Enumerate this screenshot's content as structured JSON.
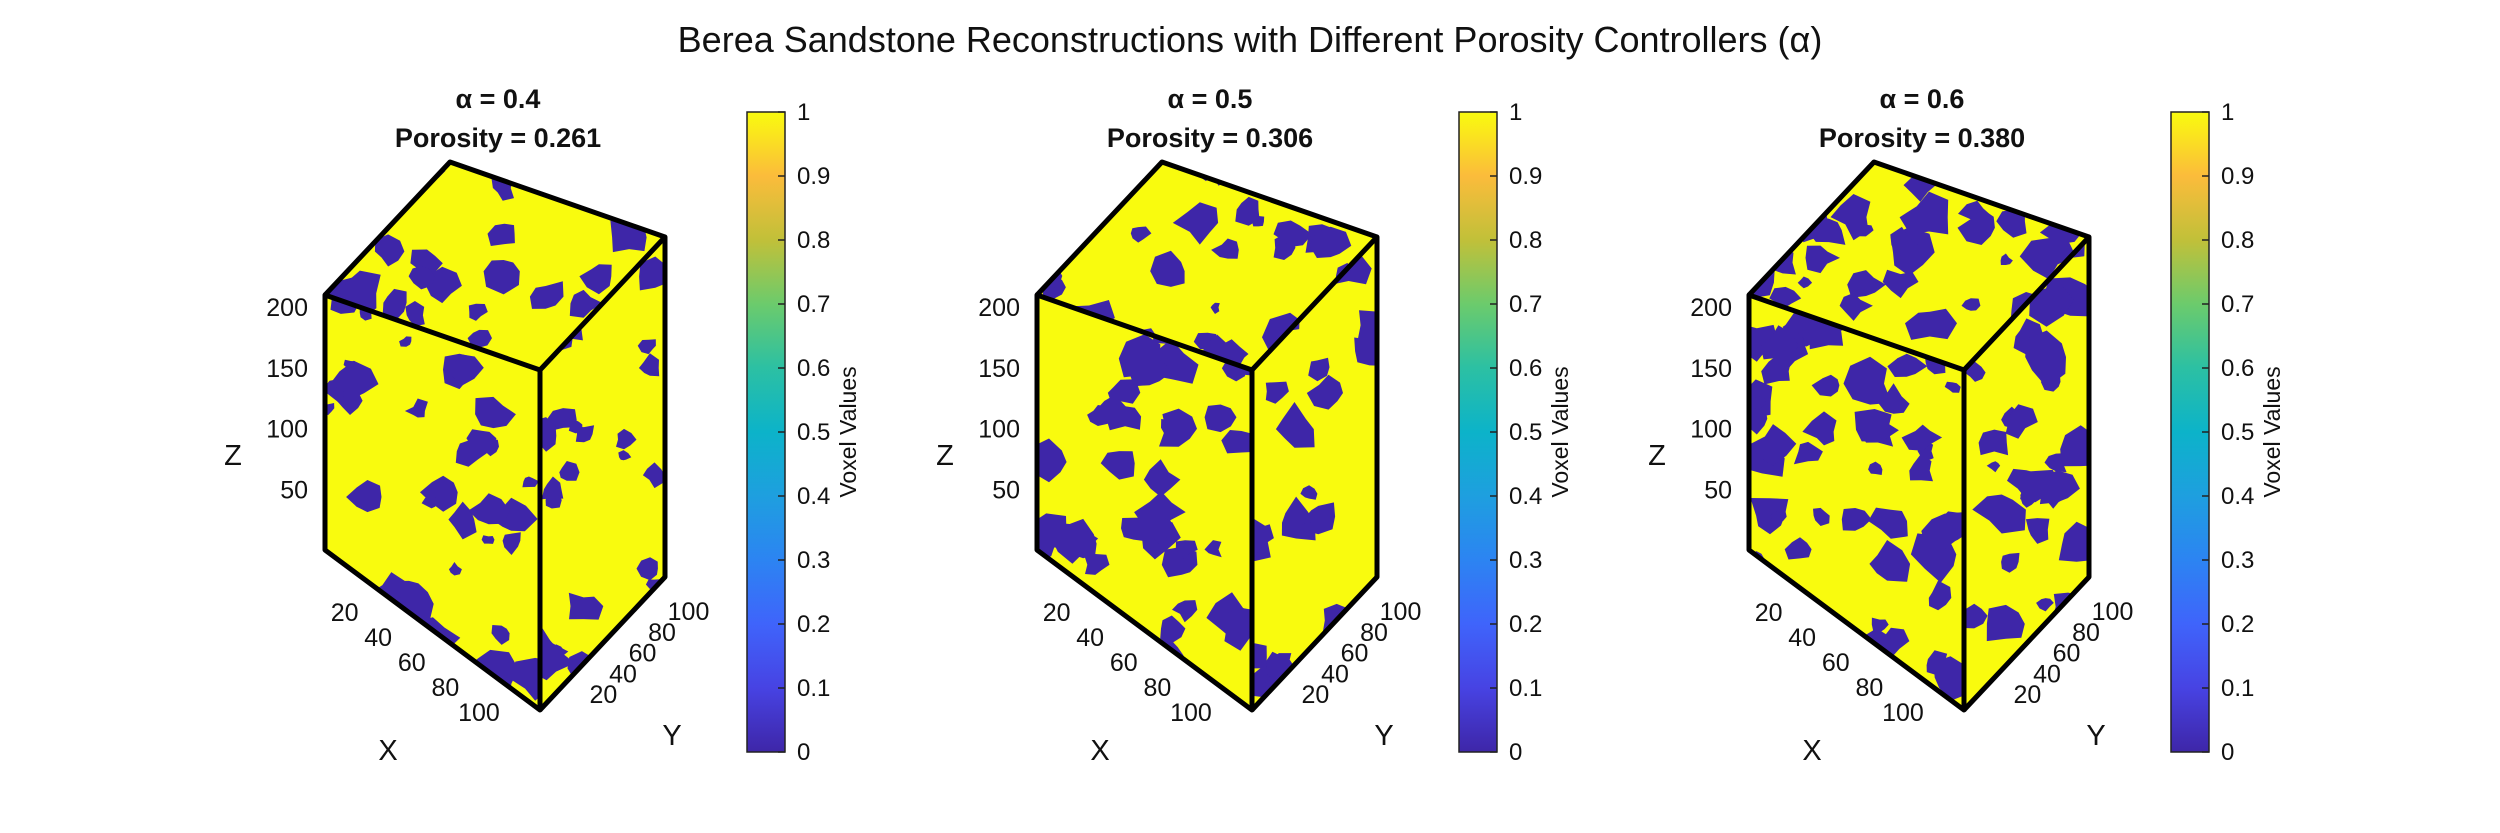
{
  "chart_data": {
    "type": "volume-3d",
    "title": "Berea Sandstone Reconstructions with Different Porosity Controllers (α)",
    "colormap": "parula",
    "colors": {
      "pore": "#3e26a8",
      "solid": "#f9fb0e",
      "edge": "#000000"
    },
    "panels": [
      {
        "title_line1": "α = 0.4",
        "title_line2": "Porosity = 0.261",
        "alpha": 0.4,
        "porosity": 0.261,
        "xlabel": "X",
        "ylabel": "Y",
        "zlabel": "Z",
        "x_ticks": [
          "20",
          "40",
          "60",
          "80",
          "100"
        ],
        "y_ticks": [
          "20",
          "40",
          "60",
          "80",
          "100"
        ],
        "z_ticks": [
          "50",
          "100",
          "150",
          "200"
        ],
        "xlim": [
          0,
          128
        ],
        "ylim": [
          0,
          128
        ],
        "zlim": [
          0,
          210
        ],
        "colorbar": {
          "label": "Voxel Values",
          "ticks": [
            "0",
            "0.1",
            "0.2",
            "0.3",
            "0.4",
            "0.5",
            "0.6",
            "0.7",
            "0.8",
            "0.9",
            "1"
          ],
          "clim": [
            0,
            1
          ]
        }
      },
      {
        "title_line1": "α = 0.5",
        "title_line2": "Porosity = 0.306",
        "alpha": 0.5,
        "porosity": 0.306,
        "xlabel": "X",
        "ylabel": "Y",
        "zlabel": "Z",
        "x_ticks": [
          "20",
          "40",
          "60",
          "80",
          "100"
        ],
        "y_ticks": [
          "20",
          "40",
          "60",
          "80",
          "100"
        ],
        "z_ticks": [
          "50",
          "100",
          "150",
          "200"
        ],
        "xlim": [
          0,
          128
        ],
        "ylim": [
          0,
          128
        ],
        "zlim": [
          0,
          210
        ],
        "colorbar": {
          "label": "Voxel Values",
          "ticks": [
            "0",
            "0.1",
            "0.2",
            "0.3",
            "0.4",
            "0.5",
            "0.6",
            "0.7",
            "0.8",
            "0.9",
            "1"
          ],
          "clim": [
            0,
            1
          ]
        }
      },
      {
        "title_line1": "α = 0.6",
        "title_line2": "Porosity = 0.380",
        "alpha": 0.6,
        "porosity": 0.38,
        "xlabel": "X",
        "ylabel": "Y",
        "zlabel": "Z",
        "x_ticks": [
          "20",
          "40",
          "60",
          "80",
          "100"
        ],
        "y_ticks": [
          "20",
          "40",
          "60",
          "80",
          "100"
        ],
        "z_ticks": [
          "50",
          "100",
          "150",
          "200"
        ],
        "xlim": [
          0,
          128
        ],
        "ylim": [
          0,
          128
        ],
        "zlim": [
          0,
          210
        ],
        "colorbar": {
          "label": "Voxel Values",
          "ticks": [
            "0",
            "0.1",
            "0.2",
            "0.3",
            "0.4",
            "0.5",
            "0.6",
            "0.7",
            "0.8",
            "0.9",
            "1"
          ],
          "clim": [
            0,
            1
          ]
        }
      }
    ]
  }
}
